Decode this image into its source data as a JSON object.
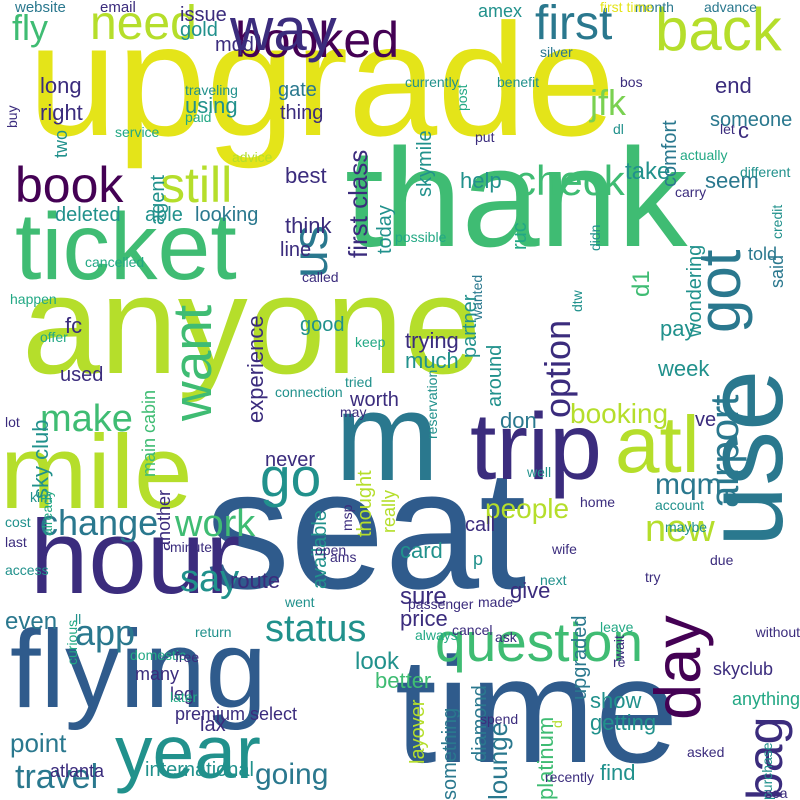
{
  "palette": {
    "dark_purple": "#440154",
    "indigo": "#3b2c7d",
    "blue": "#2f5b8c",
    "teal_blue": "#2a788e",
    "teal": "#21918c",
    "green_teal": "#22a884",
    "green": "#3fbc73",
    "light_green": "#7ad151",
    "yellow_green": "#b5de2b",
    "yellow": "#e4e419"
  },
  "words": [
    {
      "text": "upgrade",
      "color": "yellow"
    },
    {
      "text": "anyone",
      "color": "yellow_green"
    },
    {
      "text": "seat",
      "color": "blue"
    },
    {
      "text": "thank",
      "color": "green"
    },
    {
      "text": "time",
      "color": "blue"
    },
    {
      "text": "flying",
      "color": "blue"
    },
    {
      "text": "m",
      "color": "teal_blue"
    },
    {
      "text": "hour",
      "color": "indigo"
    },
    {
      "text": "mile",
      "color": "yellow_green"
    },
    {
      "text": "ticket",
      "color": "green"
    },
    {
      "text": "use",
      "color": "teal_blue"
    },
    {
      "text": "trip",
      "color": "indigo"
    },
    {
      "text": "atl",
      "color": "yellow_green"
    },
    {
      "text": "year",
      "color": "teal"
    },
    {
      "text": "booked",
      "color": "dark_purple"
    },
    {
      "text": "question",
      "color": "green"
    },
    {
      "text": "day",
      "color": "dark_purple"
    },
    {
      "text": "got",
      "color": "teal_blue"
    },
    {
      "text": "way",
      "color": "indigo"
    },
    {
      "text": "need",
      "color": "yellow_green"
    },
    {
      "text": "first",
      "color": "teal_blue"
    },
    {
      "text": "back",
      "color": "yellow_green"
    },
    {
      "text": "want",
      "color": "green"
    },
    {
      "text": "book",
      "color": "dark_purple"
    },
    {
      "text": "still",
      "color": "yellow_green"
    },
    {
      "text": "check",
      "color": "green"
    },
    {
      "text": "bag",
      "color": "indigo"
    },
    {
      "text": "airport",
      "color": "teal_blue"
    },
    {
      "text": "go",
      "color": "teal"
    },
    {
      "text": "us",
      "color": "teal_blue"
    },
    {
      "text": "make",
      "color": "green"
    },
    {
      "text": "change",
      "color": "teal_blue"
    },
    {
      "text": "work",
      "color": "green"
    },
    {
      "text": "say",
      "color": "teal"
    },
    {
      "text": "app",
      "color": "teal_blue"
    },
    {
      "text": "status",
      "color": "teal"
    },
    {
      "text": "new",
      "color": "yellow_green"
    },
    {
      "text": "travel",
      "color": "teal_blue"
    },
    {
      "text": "going",
      "color": "teal_blue"
    },
    {
      "text": "option",
      "color": "indigo"
    },
    {
      "text": "mqm",
      "color": "teal_blue"
    },
    {
      "text": "people",
      "color": "yellow_green"
    },
    {
      "text": "booking",
      "color": "yellow_green"
    },
    {
      "text": "fly",
      "color": "green"
    },
    {
      "text": "jfk",
      "color": "light_green"
    },
    {
      "text": "first class",
      "color": "indigo"
    },
    {
      "text": "experience",
      "color": "indigo"
    },
    {
      "text": "seem",
      "color": "teal_blue"
    },
    {
      "text": "take",
      "color": "teal"
    },
    {
      "text": "even",
      "color": "teal_blue"
    },
    {
      "text": "point",
      "color": "teal_blue"
    },
    {
      "text": "lounge",
      "color": "teal_blue"
    },
    {
      "text": "card",
      "color": "teal"
    },
    {
      "text": "give",
      "color": "indigo"
    },
    {
      "text": "sure",
      "color": "indigo"
    },
    {
      "text": "price",
      "color": "indigo"
    },
    {
      "text": "look",
      "color": "teal"
    },
    {
      "text": "better",
      "color": "green"
    },
    {
      "text": "route",
      "color": "indigo"
    },
    {
      "text": "show",
      "color": "teal"
    },
    {
      "text": "getting",
      "color": "teal"
    },
    {
      "text": "find",
      "color": "teal"
    },
    {
      "text": "week",
      "color": "teal"
    },
    {
      "text": "pay",
      "color": "teal"
    },
    {
      "text": "trying",
      "color": "indigo"
    },
    {
      "text": "much",
      "color": "teal"
    },
    {
      "text": "thought",
      "color": "yellow_green"
    },
    {
      "text": "call",
      "color": "indigo"
    },
    {
      "text": "layover",
      "color": "yellow_green"
    },
    {
      "text": "platinum",
      "color": "green"
    },
    {
      "text": "d1",
      "color": "green"
    },
    {
      "text": "help",
      "color": "teal"
    },
    {
      "text": "think",
      "color": "indigo"
    },
    {
      "text": "line",
      "color": "indigo"
    },
    {
      "text": "today",
      "color": "teal"
    },
    {
      "text": "good",
      "color": "teal"
    },
    {
      "text": "worth",
      "color": "indigo"
    },
    {
      "text": "never",
      "color": "indigo"
    },
    {
      "text": "available",
      "color": "teal"
    },
    {
      "text": "someone",
      "color": "teal_blue"
    },
    {
      "text": "wondering",
      "color": "teal"
    },
    {
      "text": "end",
      "color": "indigo"
    },
    {
      "text": "comfort",
      "color": "teal_blue"
    },
    {
      "text": "gate",
      "color": "teal_blue"
    },
    {
      "text": "thing",
      "color": "indigo"
    },
    {
      "text": "best",
      "color": "indigo"
    },
    {
      "text": "using",
      "color": "teal"
    },
    {
      "text": "agent",
      "color": "teal"
    },
    {
      "text": "able",
      "color": "teal"
    },
    {
      "text": "looking",
      "color": "teal_blue"
    },
    {
      "text": "deleted",
      "color": "teal"
    },
    {
      "text": "fc",
      "color": "indigo"
    },
    {
      "text": "used",
      "color": "indigo"
    },
    {
      "text": "right",
      "color": "indigo"
    },
    {
      "text": "long",
      "color": "indigo"
    },
    {
      "text": "two",
      "color": "teal"
    },
    {
      "text": "issue",
      "color": "indigo"
    },
    {
      "text": "gold",
      "color": "teal"
    },
    {
      "text": "mqd",
      "color": "indigo"
    },
    {
      "text": "amex",
      "color": "teal"
    },
    {
      "text": "c",
      "color": "indigo"
    },
    {
      "text": "ruc",
      "color": "green_teal"
    },
    {
      "text": "skymile",
      "color": "teal"
    },
    {
      "text": "partner",
      "color": "teal"
    },
    {
      "text": "around",
      "color": "teal"
    },
    {
      "text": "don",
      "color": "teal_blue"
    },
    {
      "text": "ve",
      "color": "indigo"
    },
    {
      "text": "told",
      "color": "teal_blue"
    },
    {
      "text": "said",
      "color": "teal_blue"
    },
    {
      "text": "sky club",
      "color": "teal"
    },
    {
      "text": "main cabin",
      "color": "green"
    },
    {
      "text": "another",
      "color": "indigo"
    },
    {
      "text": "international",
      "color": "teal"
    },
    {
      "text": "something",
      "color": "teal_blue"
    },
    {
      "text": "upgraded",
      "color": "teal_blue"
    },
    {
      "text": "lax",
      "color": "indigo"
    },
    {
      "text": "really",
      "color": "yellow_green"
    },
    {
      "text": "p",
      "color": "teal"
    },
    {
      "text": "diamond",
      "color": "teal_blue"
    },
    {
      "text": "skyclub",
      "color": "indigo"
    },
    {
      "text": "anything",
      "color": "green_teal"
    },
    {
      "text": "atlanta",
      "color": "indigo"
    },
    {
      "text": "many",
      "color": "indigo"
    },
    {
      "text": "leg",
      "color": "indigo"
    },
    {
      "text": "premium select",
      "color": "indigo"
    },
    {
      "text": "email",
      "color": "indigo"
    },
    {
      "text": "website",
      "color": "teal_blue"
    },
    {
      "text": "month",
      "color": "teal_blue"
    },
    {
      "text": "first time",
      "color": "yellow"
    },
    {
      "text": "advance",
      "color": "teal_blue"
    },
    {
      "text": "silver",
      "color": "teal_blue"
    },
    {
      "text": "bos",
      "color": "indigo"
    },
    {
      "text": "currently",
      "color": "teal"
    },
    {
      "text": "benefit",
      "color": "teal"
    },
    {
      "text": "traveling",
      "color": "teal"
    },
    {
      "text": "paid",
      "color": "green_teal"
    },
    {
      "text": "service",
      "color": "green_teal"
    },
    {
      "text": "advice",
      "color": "yellow_green"
    },
    {
      "text": "buy",
      "color": "indigo"
    },
    {
      "text": "post",
      "color": "green_teal"
    },
    {
      "text": "put",
      "color": "indigo"
    },
    {
      "text": "dl",
      "color": "teal"
    },
    {
      "text": "let",
      "color": "indigo"
    },
    {
      "text": "actually",
      "color": "green_teal"
    },
    {
      "text": "different",
      "color": "teal"
    },
    {
      "text": "carry",
      "color": "indigo"
    },
    {
      "text": "credit",
      "color": "teal"
    },
    {
      "text": "dtw",
      "color": "teal"
    },
    {
      "text": "didn",
      "color": "teal"
    },
    {
      "text": "possible",
      "color": "green_teal"
    },
    {
      "text": "wanted",
      "color": "teal_blue"
    },
    {
      "text": "cancelled",
      "color": "green_teal"
    },
    {
      "text": "called",
      "color": "indigo"
    },
    {
      "text": "happen",
      "color": "green_teal"
    },
    {
      "text": "offer",
      "color": "green_teal"
    },
    {
      "text": "keep",
      "color": "green_teal"
    },
    {
      "text": "reservation",
      "color": "teal"
    },
    {
      "text": "tried",
      "color": "teal"
    },
    {
      "text": "connection",
      "color": "teal"
    },
    {
      "text": "may",
      "color": "indigo"
    },
    {
      "text": "lot",
      "color": "indigo"
    },
    {
      "text": "klm",
      "color": "teal"
    },
    {
      "text": "well",
      "color": "teal"
    },
    {
      "text": "already",
      "color": "green_teal"
    },
    {
      "text": "msp",
      "color": "indigo"
    },
    {
      "text": "home",
      "color": "indigo"
    },
    {
      "text": "account",
      "color": "teal"
    },
    {
      "text": "maybe",
      "color": "teal"
    },
    {
      "text": "cost",
      "color": "teal"
    },
    {
      "text": "last",
      "color": "indigo"
    },
    {
      "text": "minute",
      "color": "indigo"
    },
    {
      "text": "ams",
      "color": "indigo"
    },
    {
      "text": "open",
      "color": "indigo"
    },
    {
      "text": "wife",
      "color": "indigo"
    },
    {
      "text": "due",
      "color": "indigo"
    },
    {
      "text": "next",
      "color": "teal"
    },
    {
      "text": "try",
      "color": "indigo"
    },
    {
      "text": "access",
      "color": "teal"
    },
    {
      "text": "made",
      "color": "indigo"
    },
    {
      "text": "went",
      "color": "teal"
    },
    {
      "text": "passenger",
      "color": "indigo"
    },
    {
      "text": "ll",
      "color": "teal"
    },
    {
      "text": "curious",
      "color": "green_teal"
    },
    {
      "text": "always",
      "color": "green_teal"
    },
    {
      "text": "cancel",
      "color": "indigo"
    },
    {
      "text": "ask",
      "color": "indigo"
    },
    {
      "text": "leave",
      "color": "green_teal"
    },
    {
      "text": "wait",
      "color": "indigo"
    },
    {
      "text": "without",
      "color": "indigo"
    },
    {
      "text": "return",
      "color": "teal"
    },
    {
      "text": "domestic",
      "color": "green_teal"
    },
    {
      "text": "free",
      "color": "indigo"
    },
    {
      "text": "re",
      "color": "indigo"
    },
    {
      "text": "later",
      "color": "green_teal"
    },
    {
      "text": "spend",
      "color": "indigo"
    },
    {
      "text": "asked",
      "color": "indigo"
    },
    {
      "text": "d",
      "color": "yellow_green"
    },
    {
      "text": "purchase",
      "color": "teal"
    },
    {
      "text": "recently",
      "color": "indigo"
    },
    {
      "text": "sea",
      "color": "indigo"
    }
  ]
}
